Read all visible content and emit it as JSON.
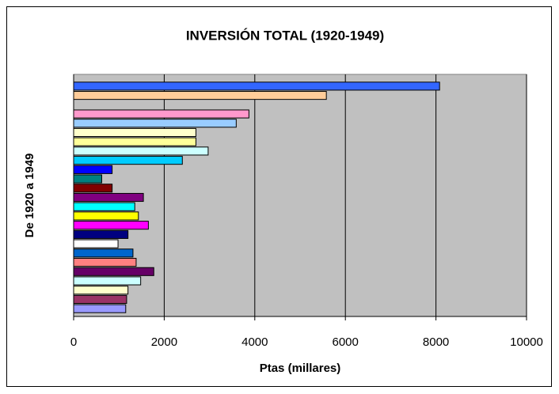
{
  "chart_data": {
    "type": "barh",
    "title": "INVERSIÓN TOTAL (1920-1949)",
    "x_label": "Ptas (millares)",
    "y_label": "De 1920 a 1949",
    "values": [
      8080,
      5580,
      null,
      3870,
      3590,
      2700,
      2700,
      2970,
      2400,
      850,
      620,
      850,
      1540,
      1350,
      1430,
      1650,
      1200,
      980,
      1310,
      1380,
      1770,
      1480,
      1200,
      1170,
      1150
    ],
    "colors": [
      "#3366ff",
      "#ffcc99",
      "#ffffff",
      "#ff99cc",
      "#99ccff",
      "#ffffcc",
      "#ffff99",
      "#ccffff",
      "#00ccff",
      "#0000ff",
      "#008080",
      "#800000",
      "#800080",
      "#00ffff",
      "#ffff00",
      "#ff00ff",
      "#000080",
      "#ffffff",
      "#0066cc",
      "#ff8080",
      "#660066",
      "#ccffff",
      "#ffffcc",
      "#993366",
      "#9999ff"
    ],
    "xlim": [
      0,
      10000
    ],
    "xticks": [
      0,
      2000,
      4000,
      6000,
      8000,
      10000
    ],
    "grid": true,
    "plot_background": "#c0c0c0"
  }
}
